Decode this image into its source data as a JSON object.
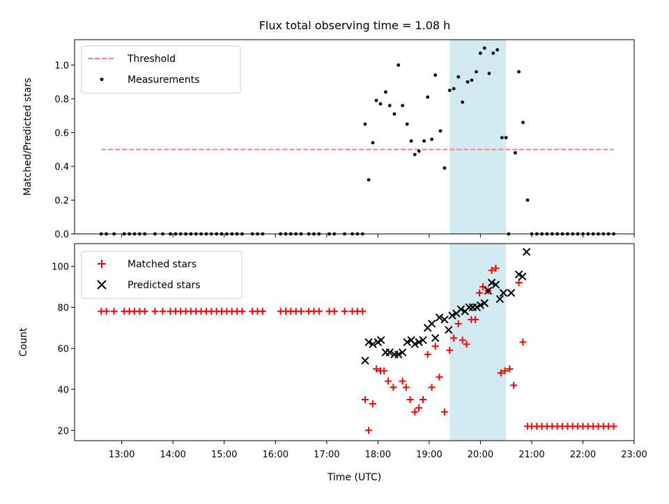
{
  "title": "Flux total observing time = 1.08 h",
  "colors": {
    "threshold": "#ff7f7f",
    "measurement": "#000000",
    "matched": "#ff0000",
    "predicted": "#000000",
    "span": "#add8e6"
  },
  "legend_top": {
    "threshold": "Threshold",
    "measurements": "Measurements"
  },
  "legend_bottom": {
    "matched": "Matched stars",
    "predicted": "Predicted stars"
  },
  "chart_data": [
    {
      "type": "scatter",
      "ylabel": "Matched/Predicted stars",
      "xlim": [
        12.08,
        23.0
      ],
      "ylim": [
        0,
        1.15
      ],
      "yticks": [
        0,
        0.2,
        0.4,
        0.6,
        0.8,
        1.0
      ],
      "yticklabels": [
        "0.0",
        "0.2",
        "0.4",
        "0.6",
        "0.8",
        "1.0"
      ],
      "threshold": {
        "value": 0.5,
        "x_range": [
          12.6,
          22.6
        ]
      },
      "shaded_span": [
        19.4,
        20.5
      ],
      "legend_position": "upper-left",
      "series": [
        {
          "name": "Measurements",
          "points": [
            [
              12.6,
              0
            ],
            [
              12.7,
              0
            ],
            [
              12.85,
              0
            ],
            [
              13.05,
              0
            ],
            [
              13.15,
              0
            ],
            [
              13.25,
              0
            ],
            [
              13.35,
              0
            ],
            [
              13.45,
              0
            ],
            [
              13.65,
              0
            ],
            [
              13.8,
              0
            ],
            [
              13.95,
              0
            ],
            [
              14.05,
              0
            ],
            [
              14.15,
              0
            ],
            [
              14.25,
              0
            ],
            [
              14.35,
              0
            ],
            [
              14.45,
              0
            ],
            [
              14.55,
              0
            ],
            [
              14.65,
              0
            ],
            [
              14.75,
              0
            ],
            [
              14.85,
              0
            ],
            [
              14.95,
              0
            ],
            [
              15.05,
              0
            ],
            [
              15.15,
              0
            ],
            [
              15.25,
              0
            ],
            [
              15.35,
              0
            ],
            [
              15.55,
              0
            ],
            [
              15.65,
              0
            ],
            [
              15.75,
              0
            ],
            [
              16.1,
              0
            ],
            [
              16.2,
              0
            ],
            [
              16.3,
              0
            ],
            [
              16.4,
              0
            ],
            [
              16.5,
              0
            ],
            [
              16.65,
              0
            ],
            [
              16.75,
              0
            ],
            [
              16.85,
              0
            ],
            [
              17.05,
              0
            ],
            [
              17.15,
              0
            ],
            [
              17.35,
              0
            ],
            [
              17.5,
              0
            ],
            [
              17.6,
              0
            ],
            [
              17.7,
              0
            ],
            [
              17.75,
              0.65
            ],
            [
              17.82,
              0.32
            ],
            [
              17.9,
              0.54
            ],
            [
              17.97,
              0.79
            ],
            [
              18.05,
              0.77
            ],
            [
              18.15,
              0.84
            ],
            [
              18.23,
              0.76
            ],
            [
              18.32,
              0.71
            ],
            [
              18.4,
              1.0
            ],
            [
              18.48,
              0.76
            ],
            [
              18.57,
              0.65
            ],
            [
              18.65,
              0.55
            ],
            [
              18.72,
              0.47
            ],
            [
              18.8,
              0.49
            ],
            [
              18.9,
              0.55
            ],
            [
              18.97,
              0.81
            ],
            [
              19.05,
              0.56
            ],
            [
              19.12,
              0.94
            ],
            [
              19.22,
              0.61
            ],
            [
              19.3,
              0.39
            ],
            [
              19.4,
              0.85
            ],
            [
              19.48,
              0.86
            ],
            [
              19.57,
              0.93
            ],
            [
              19.65,
              0.78
            ],
            [
              19.75,
              0.9
            ],
            [
              19.83,
              0.91
            ],
            [
              19.92,
              0.96
            ],
            [
              20.0,
              1.07
            ],
            [
              20.08,
              1.1
            ],
            [
              20.17,
              0.95
            ],
            [
              20.25,
              1.07
            ],
            [
              20.33,
              1.09
            ],
            [
              20.42,
              0.57
            ],
            [
              20.5,
              0.57
            ],
            [
              20.55,
              0
            ],
            [
              20.68,
              0.48
            ],
            [
              20.75,
              0.96
            ],
            [
              20.83,
              0.66
            ],
            [
              20.92,
              0.2
            ],
            [
              21.0,
              0
            ],
            [
              21.1,
              0
            ],
            [
              21.2,
              0
            ],
            [
              21.3,
              0
            ],
            [
              21.4,
              0
            ],
            [
              21.5,
              0
            ],
            [
              21.6,
              0
            ],
            [
              21.7,
              0
            ],
            [
              21.8,
              0
            ],
            [
              21.9,
              0
            ],
            [
              22.0,
              0
            ],
            [
              22.1,
              0
            ],
            [
              22.2,
              0
            ],
            [
              22.3,
              0
            ],
            [
              22.4,
              0
            ],
            [
              22.5,
              0
            ],
            [
              22.6,
              0
            ]
          ]
        }
      ]
    },
    {
      "type": "scatter",
      "xlabel": "Time (UTC)",
      "ylabel": "Count",
      "xlim": [
        12.08,
        23.0
      ],
      "ylim": [
        15,
        111
      ],
      "yticks": [
        20,
        40,
        60,
        80,
        100
      ],
      "yticklabels": [
        "20",
        "40",
        "60",
        "80",
        "100"
      ],
      "xticks": [
        13,
        14,
        15,
        16,
        17,
        18,
        19,
        20,
        21,
        22,
        23
      ],
      "xticklabels": [
        "13:00",
        "14:00",
        "15:00",
        "16:00",
        "17:00",
        "18:00",
        "19:00",
        "20:00",
        "21:00",
        "22:00",
        "23:00"
      ],
      "shaded_span": [
        19.4,
        20.5
      ],
      "legend_position": "upper-left",
      "series": [
        {
          "name": "Matched stars",
          "points": [
            [
              12.6,
              78
            ],
            [
              12.7,
              78
            ],
            [
              12.85,
              78
            ],
            [
              13.05,
              78
            ],
            [
              13.15,
              78
            ],
            [
              13.25,
              78
            ],
            [
              13.35,
              78
            ],
            [
              13.45,
              78
            ],
            [
              13.65,
              78
            ],
            [
              13.8,
              78
            ],
            [
              13.95,
              78
            ],
            [
              14.05,
              78
            ],
            [
              14.15,
              78
            ],
            [
              14.25,
              78
            ],
            [
              14.35,
              78
            ],
            [
              14.45,
              78
            ],
            [
              14.55,
              78
            ],
            [
              14.65,
              78
            ],
            [
              14.75,
              78
            ],
            [
              14.85,
              78
            ],
            [
              14.95,
              78
            ],
            [
              15.05,
              78
            ],
            [
              15.15,
              78
            ],
            [
              15.25,
              78
            ],
            [
              15.35,
              78
            ],
            [
              15.55,
              78
            ],
            [
              15.65,
              78
            ],
            [
              15.75,
              78
            ],
            [
              16.1,
              78
            ],
            [
              16.2,
              78
            ],
            [
              16.3,
              78
            ],
            [
              16.4,
              78
            ],
            [
              16.5,
              78
            ],
            [
              16.65,
              78
            ],
            [
              16.75,
              78
            ],
            [
              16.85,
              78
            ],
            [
              17.05,
              78
            ],
            [
              17.15,
              78
            ],
            [
              17.35,
              78
            ],
            [
              17.5,
              78
            ],
            [
              17.6,
              78
            ],
            [
              17.7,
              78
            ],
            [
              17.75,
              35
            ],
            [
              17.82,
              20
            ],
            [
              17.9,
              33
            ],
            [
              17.97,
              50
            ],
            [
              18.05,
              49
            ],
            [
              18.12,
              49
            ],
            [
              18.2,
              44
            ],
            [
              18.3,
              41
            ],
            [
              18.38,
              57
            ],
            [
              18.48,
              44
            ],
            [
              18.55,
              41
            ],
            [
              18.63,
              35
            ],
            [
              18.72,
              29
            ],
            [
              18.8,
              31
            ],
            [
              18.88,
              35
            ],
            [
              18.97,
              57
            ],
            [
              19.05,
              41
            ],
            [
              19.12,
              61
            ],
            [
              19.2,
              46
            ],
            [
              19.3,
              29
            ],
            [
              19.4,
              59
            ],
            [
              19.48,
              65
            ],
            [
              19.57,
              72
            ],
            [
              19.65,
              64
            ],
            [
              19.73,
              62
            ],
            [
              19.82,
              74
            ],
            [
              19.9,
              74
            ],
            [
              19.98,
              87
            ],
            [
              20.05,
              90
            ],
            [
              20.15,
              88
            ],
            [
              20.22,
              98
            ],
            [
              20.3,
              99
            ],
            [
              20.4,
              48
            ],
            [
              20.48,
              49
            ],
            [
              20.57,
              50
            ],
            [
              20.65,
              42
            ],
            [
              20.75,
              92
            ],
            [
              20.83,
              63
            ],
            [
              20.92,
              22
            ],
            [
              21.0,
              22
            ],
            [
              21.1,
              22
            ],
            [
              21.2,
              22
            ],
            [
              21.3,
              22
            ],
            [
              21.4,
              22
            ],
            [
              21.5,
              22
            ],
            [
              21.6,
              22
            ],
            [
              21.7,
              22
            ],
            [
              21.8,
              22
            ],
            [
              21.9,
              22
            ],
            [
              22.0,
              22
            ],
            [
              22.1,
              22
            ],
            [
              22.2,
              22
            ],
            [
              22.3,
              22
            ],
            [
              22.4,
              22
            ],
            [
              22.5,
              22
            ],
            [
              22.6,
              22
            ]
          ]
        },
        {
          "name": "Predicted stars",
          "points": [
            [
              17.75,
              54
            ],
            [
              17.82,
              63
            ],
            [
              17.9,
              62
            ],
            [
              18.0,
              63
            ],
            [
              18.06,
              64
            ],
            [
              18.15,
              58
            ],
            [
              18.23,
              58
            ],
            [
              18.32,
              57
            ],
            [
              18.4,
              57
            ],
            [
              18.48,
              58
            ],
            [
              18.57,
              63
            ],
            [
              18.65,
              64
            ],
            [
              18.72,
              62
            ],
            [
              18.8,
              63
            ],
            [
              18.88,
              64
            ],
            [
              18.97,
              70
            ],
            [
              19.05,
              72
            ],
            [
              19.12,
              65
            ],
            [
              19.2,
              75
            ],
            [
              19.3,
              74
            ],
            [
              19.38,
              69
            ],
            [
              19.45,
              76
            ],
            [
              19.53,
              77
            ],
            [
              19.62,
              79
            ],
            [
              19.7,
              78
            ],
            [
              19.78,
              80
            ],
            [
              19.85,
              80
            ],
            [
              19.93,
              80
            ],
            [
              20.0,
              81
            ],
            [
              20.08,
              82
            ],
            [
              20.15,
              88
            ],
            [
              20.22,
              92
            ],
            [
              20.3,
              91
            ],
            [
              20.38,
              84
            ],
            [
              20.45,
              87
            ],
            [
              20.6,
              87
            ],
            [
              20.75,
              96
            ],
            [
              20.82,
              95
            ],
            [
              20.9,
              107
            ]
          ]
        }
      ]
    }
  ]
}
